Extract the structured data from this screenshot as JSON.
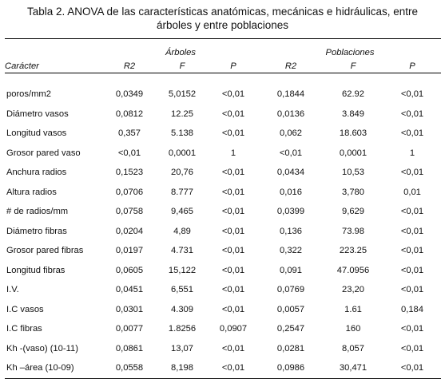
{
  "caption": {
    "line1": "Tabla 2. ANOVA de las características anatómicas, mecánicas e hidráulicas, entre",
    "line2": "árboles y entre poblaciones"
  },
  "table": {
    "groups": {
      "arboles": "Árboles",
      "poblaciones": "Poblaciones"
    },
    "columns": [
      "Carácter",
      "R2",
      "F",
      "P",
      "R2",
      "F",
      "P"
    ],
    "rows": [
      [
        "poros/mm2",
        "0,0349",
        "5,0152",
        "<0,01",
        "0,1844",
        "62.92",
        "<0,01"
      ],
      [
        "Diámetro vasos",
        "0,0812",
        "12.25",
        "<0,01",
        "0,0136",
        "3.849",
        "<0,01"
      ],
      [
        "Longitud vasos",
        "0,357",
        "5.138",
        "<0,01",
        "0,062",
        "18.603",
        "<0,01"
      ],
      [
        "Grosor pared vaso",
        "<0,01",
        "0,0001",
        "1",
        "<0,01",
        "0,0001",
        "1"
      ],
      [
        "Anchura radios",
        "0,1523",
        "20,76",
        "<0,01",
        "0,0434",
        "10,53",
        "<0,01"
      ],
      [
        "Altura radios",
        "0,0706",
        "8.777",
        "<0,01",
        "0,016",
        "3,780",
        "0,01"
      ],
      [
        "# de radios/mm",
        "0,0758",
        "9,465",
        "<0,01",
        "0,0399",
        "9,629",
        "<0,01"
      ],
      [
        "Diámetro fibras",
        "0,0204",
        "4,89",
        "<0,01",
        "0,136",
        "73.98",
        "<0,01"
      ],
      [
        "Grosor pared fibras",
        "0,0197",
        "4.731",
        "<0,01",
        "0,322",
        "223.25",
        "<0,01"
      ],
      [
        "Longitud fibras",
        "0,0605",
        "15,122",
        "<0,01",
        "0,091",
        "47.0956",
        "<0,01"
      ],
      [
        "I.V.",
        "0,0451",
        "6,551",
        "<0,01",
        "0,0769",
        "23,20",
        "<0,01"
      ],
      [
        "I.C  vasos",
        "0,0301",
        "4.309",
        "<0,01",
        "0,0057",
        "1.61",
        "0,184"
      ],
      [
        "I.C  fibras",
        "0,0077",
        "1.8256",
        "0,0907",
        "0,2547",
        "160",
        "<0,01"
      ],
      [
        "Kh -(vaso)  (10-11)",
        "0,0861",
        "13,07",
        "<0,01",
        "0,0281",
        "8,057",
        "<0,01"
      ],
      [
        "Kh –área (10-09)",
        "0,0558",
        "8,198",
        "<0,01",
        "0,0986",
        "30,471",
        "<0,01"
      ]
    ]
  }
}
